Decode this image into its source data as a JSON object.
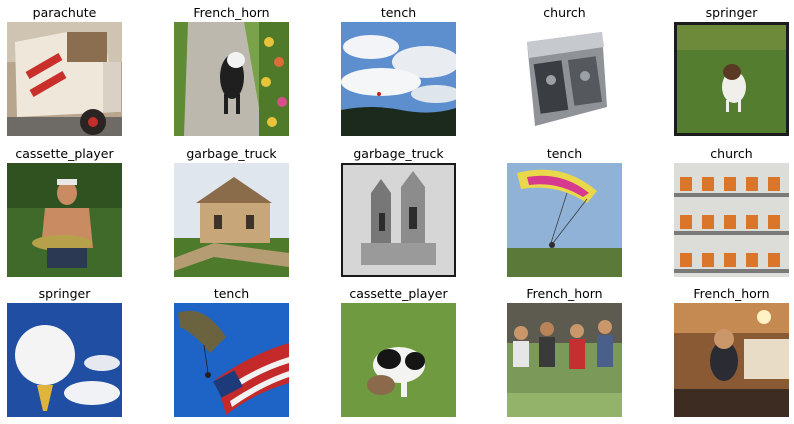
{
  "grid": {
    "rows": 3,
    "cols": 5,
    "cells": [
      {
        "label": "parachute",
        "thumb": "garbage-truck-thumbnail"
      },
      {
        "label": "French_horn",
        "thumb": "dog-on-path-thumbnail"
      },
      {
        "label": "tench",
        "thumb": "cloudy-sky-thumbnail"
      },
      {
        "label": "church",
        "thumb": "cassette-player-thumbnail"
      },
      {
        "label": "springer",
        "thumb": "springer-dog-thumbnail"
      },
      {
        "label": "cassette_player",
        "thumb": "man-holding-fish-thumbnail"
      },
      {
        "label": "garbage_truck",
        "thumb": "stone-church-thumbnail"
      },
      {
        "label": "garbage_truck",
        "thumb": "church-facade-thumbnail"
      },
      {
        "label": "tench",
        "thumb": "parachute-thumbnail"
      },
      {
        "label": "church",
        "thumb": "chainsaw-shelves-thumbnail"
      },
      {
        "label": "springer",
        "thumb": "golf-ball-thumbnail"
      },
      {
        "label": "tench",
        "thumb": "parachute-flag-thumbnail"
      },
      {
        "label": "cassette_player",
        "thumb": "puppy-on-grass-thumbnail"
      },
      {
        "label": "French_horn",
        "thumb": "band-crowd-thumbnail"
      },
      {
        "label": "French_horn",
        "thumb": "french-horn-room-thumbnail"
      }
    ]
  }
}
